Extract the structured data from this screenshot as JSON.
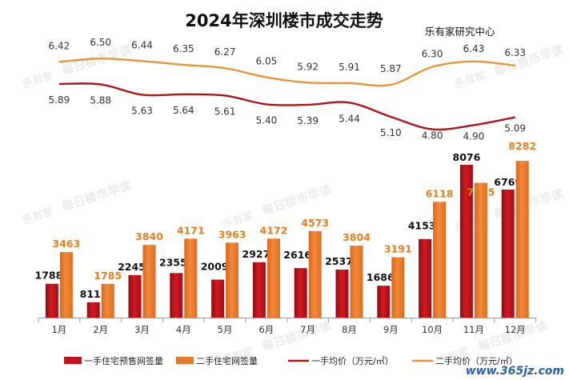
{
  "chart_data": {
    "type": "bar",
    "title": "2024年深圳楼市成交走势",
    "source": "乐有家研究中心",
    "watermark_text": "每日楼市早读",
    "watermark_logo_text": "乐有家",
    "corner_watermark": "www.365jz.com",
    "categories": [
      "1月",
      "2月",
      "3月",
      "4月",
      "5月",
      "6月",
      "7月",
      "8月",
      "9月",
      "10月",
      "11月",
      "12月"
    ],
    "bar_ylim": [
      0,
      8500
    ],
    "series": [
      {
        "name": "一手住宅预售网签量",
        "kind": "bar",
        "color": "#c0141c",
        "values": [
          1788,
          811,
          2245,
          2355,
          2009,
          2927,
          2616,
          2537,
          1686,
          4153,
          8076,
          6769
        ]
      },
      {
        "name": "二手住宅网签量",
        "kind": "bar",
        "color": "#e8782d",
        "values": [
          3463,
          1785,
          3840,
          4171,
          3963,
          4172,
          4573,
          3804,
          3191,
          6118,
          7125,
          8282
        ]
      },
      {
        "name": "一手均价（万元/㎡）",
        "kind": "line",
        "color": "#b01218",
        "values": [
          5.89,
          5.88,
          5.63,
          5.64,
          5.61,
          5.4,
          5.39,
          5.44,
          5.1,
          4.8,
          4.9,
          5.09
        ],
        "labels": [
          "5.89",
          "5.88",
          "5.63",
          "5.64",
          "5.61",
          "5.40",
          "5.39",
          "5.44",
          "5.10",
          "4.80",
          "4.90",
          "5.09"
        ]
      },
      {
        "name": "二手均价（万元/㎡）",
        "kind": "line",
        "color": "#e8953a",
        "values": [
          6.42,
          6.5,
          6.44,
          6.35,
          6.27,
          6.05,
          5.92,
          5.91,
          5.87,
          6.3,
          6.43,
          6.33
        ],
        "labels": [
          "6.42",
          "6.50",
          "6.44",
          "6.35",
          "6.27",
          "6.05",
          "5.92",
          "5.91",
          "5.87",
          "6.30",
          "6.43",
          "6.33"
        ]
      }
    ],
    "line_ylim": [
      4.6,
      6.6
    ],
    "grid": false,
    "legend_position": "bottom"
  }
}
